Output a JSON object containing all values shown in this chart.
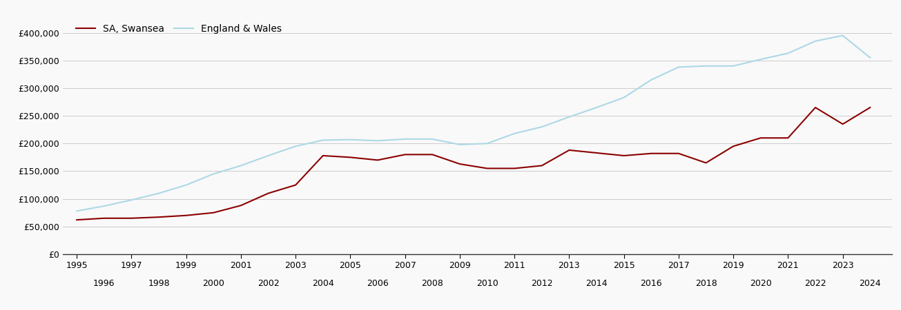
{
  "legend_labels": [
    "SA, Swansea",
    "England & Wales"
  ],
  "line_colors": [
    "#8B0000",
    "#ADD8E6"
  ],
  "background_color": "#f9f9f9",
  "ylim": [
    0,
    420000
  ],
  "yticks": [
    0,
    50000,
    100000,
    150000,
    200000,
    250000,
    300000,
    350000,
    400000
  ],
  "years": [
    1995,
    1996,
    1997,
    1998,
    1999,
    2000,
    2001,
    2002,
    2003,
    2004,
    2005,
    2006,
    2007,
    2008,
    2009,
    2010,
    2011,
    2012,
    2013,
    2014,
    2015,
    2016,
    2017,
    2018,
    2019,
    2020,
    2021,
    2022,
    2023,
    2024
  ],
  "swansea": [
    62000,
    65000,
    65000,
    67000,
    70000,
    75000,
    88000,
    110000,
    125000,
    178000,
    175000,
    170000,
    180000,
    180000,
    163000,
    155000,
    155000,
    160000,
    188000,
    183000,
    178000,
    182000,
    182000,
    165000,
    195000,
    210000,
    210000,
    265000,
    235000,
    265000
  ],
  "england_wales": [
    78000,
    87000,
    98000,
    110000,
    125000,
    145000,
    160000,
    178000,
    195000,
    206000,
    207000,
    205000,
    208000,
    208000,
    198000,
    200000,
    218000,
    230000,
    248000,
    265000,
    283000,
    315000,
    338000,
    340000,
    340000,
    352000,
    363000,
    385000,
    395000,
    355000
  ],
  "xtick_odd": [
    1995,
    1997,
    1999,
    2001,
    2003,
    2005,
    2007,
    2009,
    2011,
    2013,
    2015,
    2017,
    2019,
    2021,
    2023
  ],
  "xtick_even": [
    1996,
    1998,
    2000,
    2002,
    2004,
    2006,
    2008,
    2010,
    2012,
    2014,
    2016,
    2018,
    2020,
    2022,
    2024
  ],
  "xlim": [
    1994.5,
    2024.8
  ],
  "line_width": 1.5,
  "grid_color": "#cccccc",
  "spine_color": "#333333",
  "tick_fontsize": 9,
  "legend_fontsize": 10
}
